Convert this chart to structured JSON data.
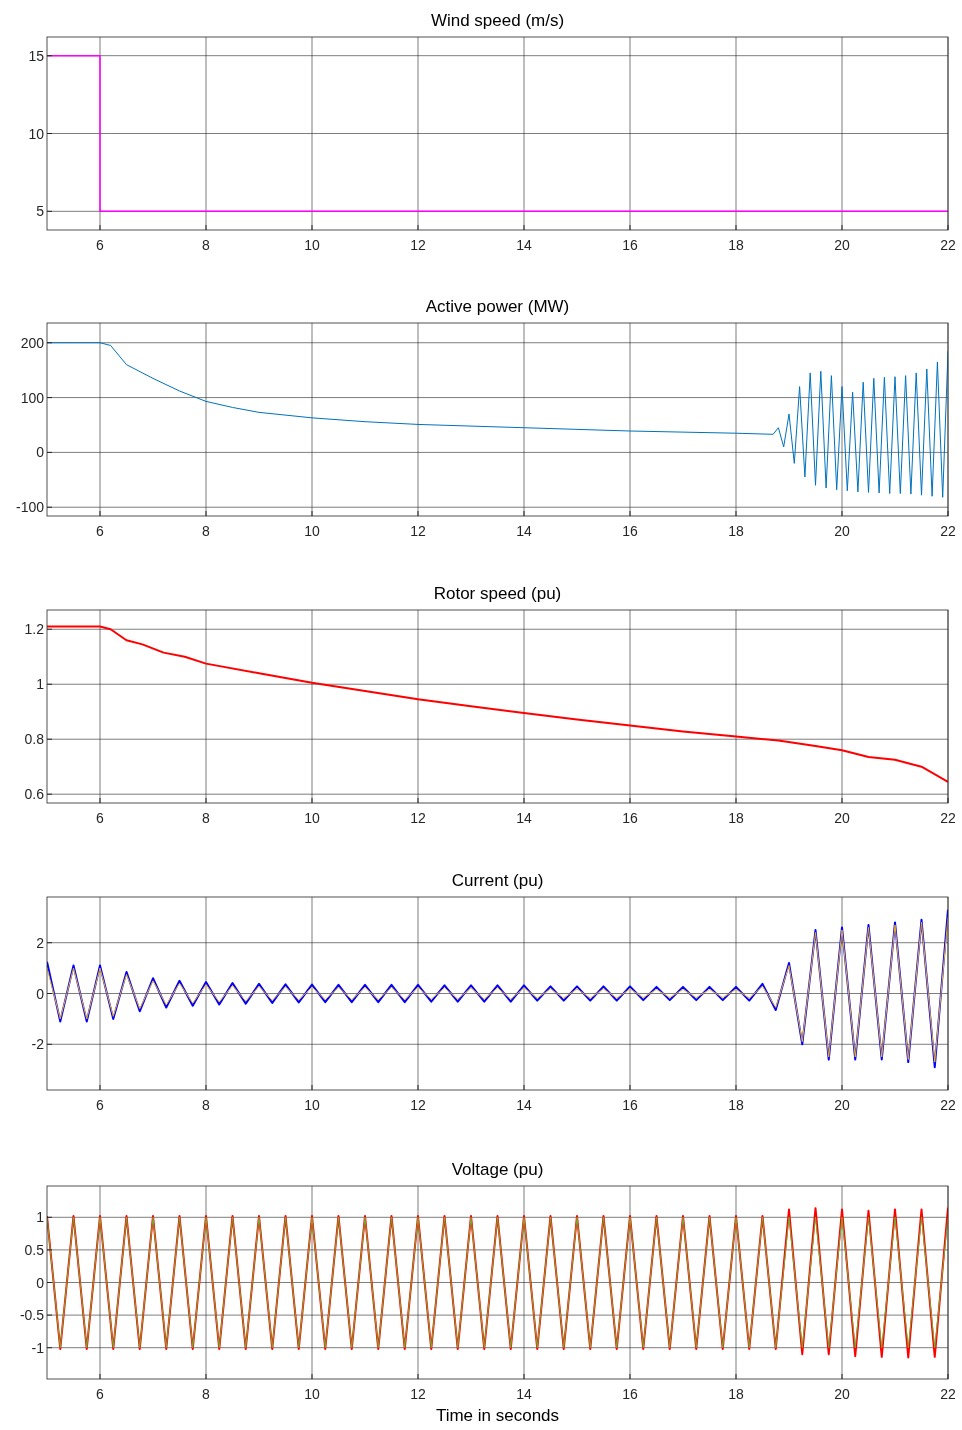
{
  "chart_data": [
    {
      "type": "step",
      "title": "Wind speed (m/s)",
      "xlim": [
        5,
        22
      ],
      "xticks": [
        6,
        8,
        10,
        12,
        14,
        16,
        18,
        20,
        22
      ],
      "ylim": [
        3.8,
        16.2
      ],
      "yticks": [
        5,
        10,
        15
      ],
      "grid": true,
      "series": [
        {
          "color": "#ff00ff",
          "x": [
            5,
            6,
            22
          ],
          "values": [
            15,
            5,
            5
          ]
        }
      ]
    },
    {
      "type": "line",
      "title": "Active power (MW)",
      "xlim": [
        5,
        22
      ],
      "xticks": [
        6,
        8,
        10,
        12,
        14,
        16,
        18,
        20,
        22
      ],
      "ylim": [
        -116,
        236
      ],
      "yticks": [
        -100,
        0,
        100,
        200
      ],
      "grid": true,
      "series": [
        {
          "color": "#0072bd",
          "x": [
            5,
            5.5,
            6,
            6.2,
            6.5,
            7,
            7.5,
            8,
            8.5,
            9,
            10,
            11,
            12,
            13,
            14,
            15,
            16,
            17,
            18,
            18.7,
            18.8,
            18.9,
            19,
            19.1,
            19.2,
            19.3,
            19.4,
            19.5,
            19.6,
            19.7,
            19.8,
            19.9,
            20,
            20.1,
            20.2,
            20.3,
            20.4,
            20.5,
            20.6,
            20.7,
            20.8,
            20.9,
            21,
            21.1,
            21.2,
            21.3,
            21.4,
            21.5,
            21.6,
            21.7,
            21.8,
            21.9,
            22
          ],
          "values": [
            200,
            200,
            200,
            195,
            160,
            135,
            112,
            93,
            82,
            73,
            63,
            56,
            51,
            48,
            45,
            42,
            39,
            37,
            35,
            33,
            45,
            10,
            70,
            -20,
            120,
            -45,
            145,
            -60,
            148,
            -65,
            140,
            -68,
            120,
            -70,
            110,
            -72,
            128,
            -73,
            135,
            -74,
            137,
            -75,
            138,
            -75,
            140,
            -76,
            145,
            -78,
            152,
            -80,
            165,
            -82,
            185
          ]
        }
      ]
    },
    {
      "type": "line",
      "title": "Rotor speed (pu)",
      "xlim": [
        5,
        22
      ],
      "xticks": [
        6,
        8,
        10,
        12,
        14,
        16,
        18,
        20,
        22
      ],
      "ylim": [
        0.568,
        1.27
      ],
      "yticks": [
        0.6,
        0.8,
        1,
        1.2
      ],
      "grid": true,
      "series": [
        {
          "color": "#ff0000",
          "x": [
            5,
            6,
            6.2,
            6.5,
            6.8,
            7.2,
            7.6,
            8,
            9,
            10,
            11,
            12,
            13,
            14,
            15,
            16,
            17,
            18,
            18.8,
            19.5,
            20,
            20.5,
            21,
            21.5,
            22
          ],
          "values": [
            1.21,
            1.21,
            1.2,
            1.16,
            1.145,
            1.115,
            1.1,
            1.075,
            1.04,
            1.005,
            0.975,
            0.945,
            0.92,
            0.895,
            0.872,
            0.85,
            0.828,
            0.81,
            0.795,
            0.775,
            0.76,
            0.735,
            0.725,
            0.7,
            0.645
          ]
        }
      ]
    },
    {
      "type": "line",
      "title": "Current (pu)",
      "xlim": [
        5,
        22
      ],
      "xticks": [
        6,
        8,
        10,
        12,
        14,
        16,
        18,
        20,
        22
      ],
      "ylim": [
        -3.8,
        3.8
      ],
      "yticks": [
        -2,
        0,
        2
      ],
      "grid": true,
      "x": [
        5,
        5.25,
        5.5,
        5.75,
        6,
        6.25,
        6.5,
        6.75,
        7,
        7.25,
        7.5,
        7.75,
        8,
        8.25,
        8.5,
        8.75,
        9,
        9.25,
        9.5,
        9.75,
        10,
        10.25,
        10.5,
        10.75,
        11,
        11.25,
        11.5,
        11.75,
        12,
        12.25,
        12.5,
        12.75,
        13,
        13.25,
        13.5,
        13.75,
        14,
        14.25,
        14.5,
        14.75,
        15,
        15.25,
        15.5,
        15.75,
        16,
        16.25,
        16.5,
        16.75,
        17,
        17.25,
        17.5,
        17.75,
        18,
        18.25,
        18.5,
        18.75,
        19,
        19.25,
        19.5,
        19.75,
        20,
        20.25,
        20.5,
        20.75,
        21,
        21.25,
        21.5,
        21.75,
        22
      ],
      "series": [
        {
          "color": "#0000ff",
          "values": [
            1.25,
            -1.1,
            1.1,
            -1.1,
            1.1,
            -1,
            0.85,
            -0.7,
            0.6,
            -0.55,
            0.5,
            -0.48,
            0.45,
            -0.43,
            0.41,
            -0.4,
            0.38,
            -0.37,
            0.36,
            -0.35,
            0.35,
            -0.34,
            0.34,
            -0.34,
            0.34,
            -0.34,
            0.34,
            -0.34,
            0.34,
            -0.32,
            0.32,
            -0.32,
            0.32,
            -0.32,
            0.32,
            -0.32,
            0.32,
            -0.28,
            0.28,
            -0.28,
            0.28,
            -0.28,
            0.28,
            -0.28,
            0.28,
            -0.26,
            0.26,
            -0.26,
            0.26,
            -0.26,
            0.26,
            -0.26,
            0.26,
            -0.28,
            0.38,
            -0.65,
            1.2,
            -2,
            2.5,
            -2.6,
            2.6,
            -2.6,
            2.7,
            -2.6,
            2.8,
            -2.7,
            2.9,
            -2.9,
            3.3
          ]
        },
        {
          "color": "#edb120",
          "values": [
            1,
            -1,
            1,
            -1,
            1,
            -0.9,
            0.75,
            -0.6,
            0.5,
            -0.45,
            0.4,
            -0.38,
            0.35,
            -0.33,
            0.31,
            -0.3,
            0.28,
            -0.27,
            0.26,
            -0.25,
            0.25,
            -0.24,
            0.24,
            -0.24,
            0.24,
            -0.24,
            0.24,
            -0.24,
            0.24,
            -0.22,
            0.22,
            -0.22,
            0.22,
            -0.22,
            0.22,
            -0.22,
            0.22,
            -0.18,
            0.18,
            -0.18,
            0.18,
            -0.18,
            0.18,
            -0.18,
            0.18,
            -0.16,
            0.16,
            -0.16,
            0.16,
            -0.16,
            0.16,
            -0.16,
            0.16,
            -0.18,
            0.28,
            -0.55,
            1.1,
            -1.9,
            2.4,
            -2.5,
            2.5,
            -2.5,
            2.6,
            -2.5,
            2.7,
            -2.6,
            2.8,
            -2.7,
            3
          ]
        }
      ]
    },
    {
      "type": "line",
      "title": "Voltage (pu)",
      "xlabel": "Time in seconds",
      "xlim": [
        5,
        22
      ],
      "xticks": [
        6,
        8,
        10,
        12,
        14,
        16,
        18,
        20,
        22
      ],
      "ylim": [
        -1.48,
        1.48
      ],
      "yticks": [
        -1,
        -0.5,
        0,
        0.5,
        1
      ],
      "grid": true,
      "x": [
        5,
        5.25,
        5.5,
        5.75,
        6,
        6.25,
        6.5,
        6.75,
        7,
        7.25,
        7.5,
        7.75,
        8,
        8.25,
        8.5,
        8.75,
        9,
        9.25,
        9.5,
        9.75,
        10,
        10.25,
        10.5,
        10.75,
        11,
        11.25,
        11.5,
        11.75,
        12,
        12.25,
        12.5,
        12.75,
        13,
        13.25,
        13.5,
        13.75,
        14,
        14.25,
        14.5,
        14.75,
        15,
        15.25,
        15.5,
        15.75,
        16,
        16.25,
        16.5,
        16.75,
        17,
        17.25,
        17.5,
        17.75,
        18,
        18.25,
        18.5,
        18.75,
        19,
        19.25,
        19.5,
        19.75,
        20,
        20.25,
        20.5,
        20.75,
        21,
        21.25,
        21.5,
        21.75,
        22
      ],
      "series": [
        {
          "color": "#ff0000",
          "values": [
            1.02,
            -1.02,
            1.02,
            -1.02,
            1.02,
            -1.02,
            1.02,
            -1.02,
            1.02,
            -1.02,
            1.02,
            -1.02,
            1.02,
            -1.02,
            1.02,
            -1.02,
            1.02,
            -1.02,
            1.02,
            -1.02,
            1.02,
            -1.02,
            1.02,
            -1.02,
            1.02,
            -1.02,
            1.02,
            -1.02,
            1.02,
            -1.02,
            1.02,
            -1.02,
            1.02,
            -1.02,
            1.02,
            -1.02,
            1.02,
            -1.02,
            1.02,
            -1.02,
            1.02,
            -1.02,
            1.02,
            -1.02,
            1.02,
            -1.02,
            1.02,
            -1.02,
            1.02,
            -1.02,
            1.02,
            -1.02,
            1.02,
            -1.02,
            1.02,
            -1.02,
            1.12,
            -1.1,
            1.14,
            -1.1,
            1.12,
            -1.13,
            1.1,
            -1.14,
            1.12,
            -1.15,
            1.12,
            -1.14,
            1.15
          ]
        },
        {
          "color": "#77ac30",
          "values": [
            1,
            -1,
            1,
            -1,
            1,
            -1,
            1,
            -1,
            1,
            -1,
            1,
            -1,
            1,
            -1,
            1,
            -1,
            1,
            -1,
            1,
            -1,
            1,
            -1,
            1,
            -1,
            1,
            -1,
            1,
            -1,
            1,
            -1,
            1,
            -1,
            1,
            -1,
            1,
            -1,
            1,
            -1,
            1,
            -1,
            1,
            -1,
            1,
            -1,
            1,
            -1,
            1,
            -1,
            1,
            -1,
            1,
            -1,
            1,
            -1,
            1,
            -1,
            1,
            -1,
            1,
            -1,
            1,
            -1,
            1,
            -1,
            1,
            -1,
            1,
            -1,
            1
          ]
        }
      ]
    }
  ]
}
